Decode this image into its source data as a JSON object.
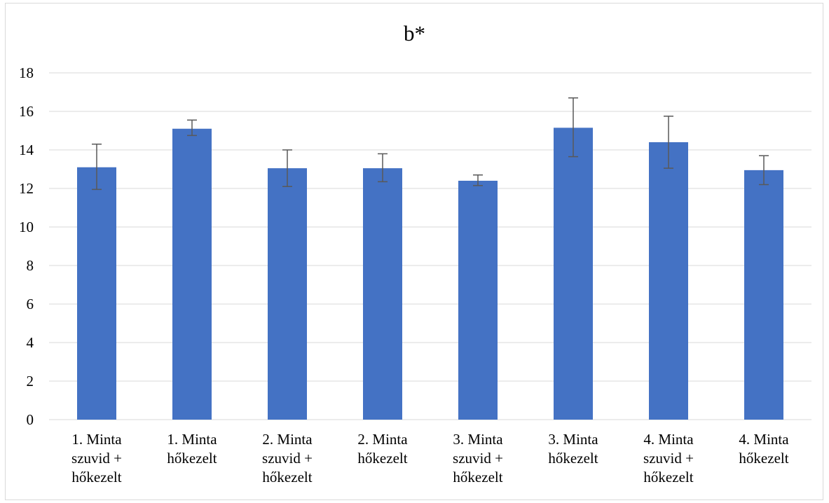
{
  "chart_data": {
    "type": "bar",
    "title": "b*",
    "categories": [
      [
        "1. Minta",
        "szuvid +",
        "hőkezelt"
      ],
      [
        "1. Minta",
        "hőkezelt"
      ],
      [
        "2. Minta",
        "szuvid +",
        "hőkezelt"
      ],
      [
        "2. Minta",
        "hőkezelt"
      ],
      [
        "3. Minta",
        "szuvid +",
        "hőkezelt"
      ],
      [
        "3. Minta",
        "hőkezelt"
      ],
      [
        "4. Minta",
        "szuvid +",
        "hőkezelt"
      ],
      [
        "4. Minta",
        "hőkezelt"
      ]
    ],
    "values": [
      13.1,
      15.1,
      13.05,
      13.05,
      12.4,
      15.15,
      14.4,
      12.95
    ],
    "error_lower": [
      11.95,
      14.75,
      12.1,
      12.35,
      12.15,
      13.65,
      13.05,
      12.2
    ],
    "error_upper": [
      14.3,
      15.55,
      14.0,
      13.8,
      12.7,
      16.7,
      15.75,
      13.7
    ],
    "yticks": [
      "0",
      "2",
      "4",
      "6",
      "8",
      "10",
      "12",
      "14",
      "16",
      "18"
    ],
    "ylim": [
      0,
      18
    ],
    "grid": true,
    "bar_color": "#4472c4",
    "error_bar_color": "#595959",
    "grid_color": "#d9d9d9"
  }
}
